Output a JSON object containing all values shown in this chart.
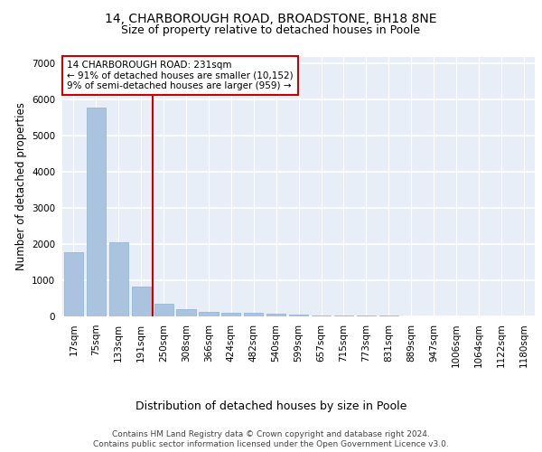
{
  "title1": "14, CHARBOROUGH ROAD, BROADSTONE, BH18 8NE",
  "title2": "Size of property relative to detached houses in Poole",
  "xlabel": "Distribution of detached houses by size in Poole",
  "ylabel": "Number of detached properties",
  "footer1": "Contains HM Land Registry data © Crown copyright and database right 2024.",
  "footer2": "Contains public sector information licensed under the Open Government Licence v3.0.",
  "annotation_line1": "14 CHARBOROUGH ROAD: 231sqm",
  "annotation_line2": "← 91% of detached houses are smaller (10,152)",
  "annotation_line3": "9% of semi-detached houses are larger (959) →",
  "bar_labels": [
    "17sqm",
    "75sqm",
    "133sqm",
    "191sqm",
    "250sqm",
    "308sqm",
    "366sqm",
    "424sqm",
    "482sqm",
    "540sqm",
    "599sqm",
    "657sqm",
    "715sqm",
    "773sqm",
    "831sqm",
    "889sqm",
    "947sqm",
    "1006sqm",
    "1064sqm",
    "1122sqm",
    "1180sqm"
  ],
  "bar_values": [
    1780,
    5780,
    2060,
    820,
    360,
    200,
    120,
    100,
    90,
    65,
    50,
    35,
    30,
    20,
    15,
    12,
    10,
    8,
    6,
    5,
    4
  ],
  "bar_color": "#aac4e0",
  "bar_edge_color": "#8ab0d0",
  "vline_x": 3.5,
  "vline_color": "#cc0000",
  "annotation_box_color": "#cc0000",
  "ylim": [
    0,
    7200
  ],
  "yticks": [
    0,
    1000,
    2000,
    3000,
    4000,
    5000,
    6000,
    7000
  ],
  "bg_color": "#e8eef8",
  "grid_color": "#ffffff",
  "title1_fontsize": 10,
  "title2_fontsize": 9,
  "ylabel_fontsize": 8.5,
  "xlabel_fontsize": 9,
  "tick_fontsize": 7.5,
  "footer_fontsize": 6.5,
  "annot_fontsize": 7.5
}
